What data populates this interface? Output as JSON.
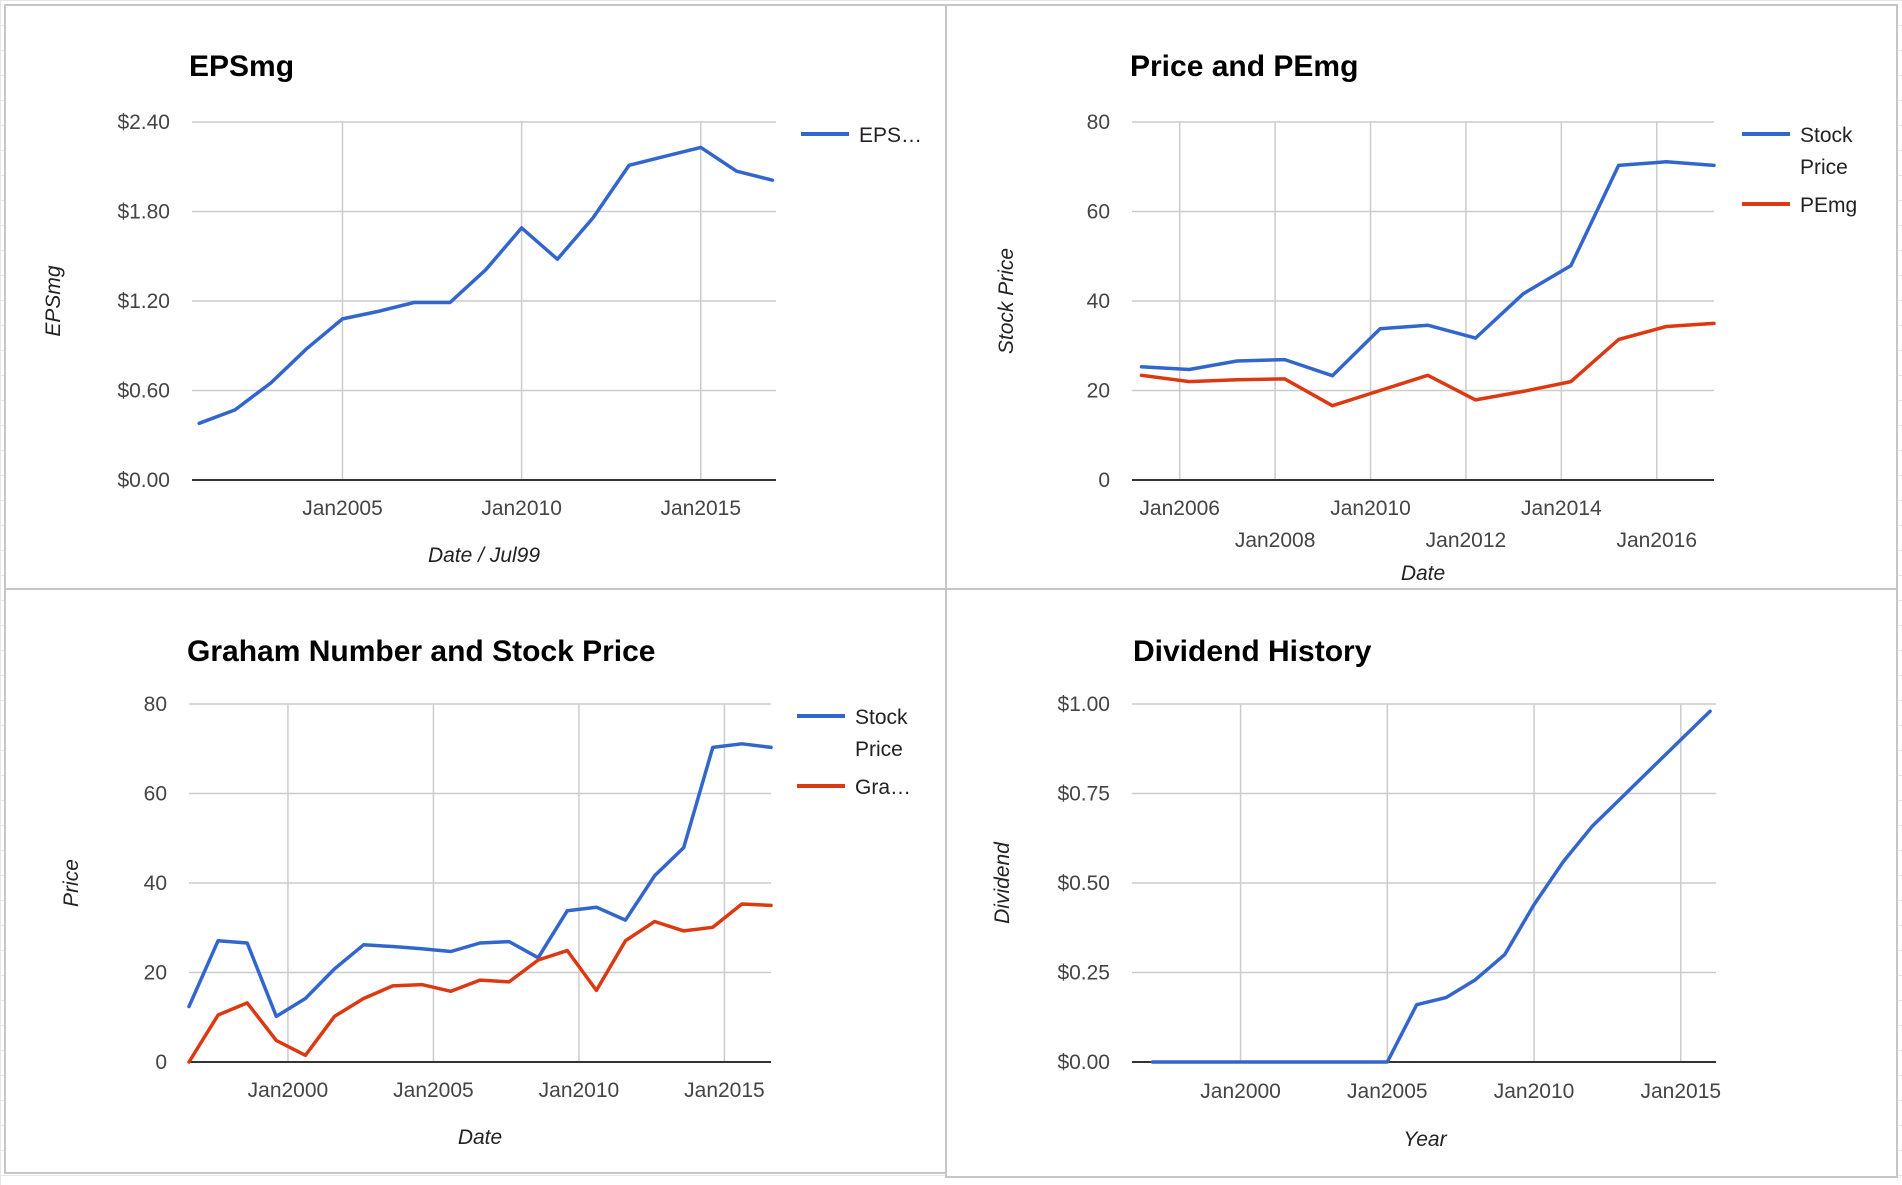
{
  "chart_data": [
    {
      "type": "line",
      "title": "EPSmg",
      "xlabel": "Date / Jul99",
      "ylabel": "EPSmg",
      "x_ticks": [
        "Jan2005",
        "Jan2010",
        "Jan2015"
      ],
      "y_ticks": [
        "$0.00",
        "$0.60",
        "$1.20",
        "$1.80",
        "$2.40"
      ],
      "ylim": [
        0,
        2.4
      ],
      "grid": true,
      "legend": "right",
      "x": [
        2001,
        2002,
        2003,
        2004,
        2005,
        2006,
        2007,
        2008,
        2009,
        2010,
        2011,
        2012,
        2013,
        2014,
        2015,
        2016,
        2017
      ],
      "series": [
        {
          "name": "EPS…",
          "color": "#3366cc",
          "values": [
            0.38,
            0.47,
            0.65,
            0.88,
            1.08,
            1.13,
            1.19,
            1.19,
            1.41,
            1.69,
            1.48,
            1.76,
            2.11,
            2.17,
            2.23,
            2.07,
            2.01
          ]
        }
      ]
    },
    {
      "type": "line",
      "title": "Price and PEmg",
      "xlabel": "Date",
      "ylabel": "Stock Price",
      "x_ticks": [
        "Jan2006",
        "Jan2008",
        "Jan2010",
        "Jan2012",
        "Jan2014",
        "Jan2016"
      ],
      "y_ticks": [
        "0",
        "20",
        "40",
        "60",
        "80"
      ],
      "ylim": [
        0,
        80
      ],
      "grid": true,
      "legend": "right",
      "x": [
        2005.2,
        2006.2,
        2007.2,
        2008.2,
        2009.2,
        2010.2,
        2011.2,
        2012.2,
        2013.2,
        2014.2,
        2015.2,
        2016.2,
        2017.2
      ],
      "series": [
        {
          "name": "Stock Price",
          "color": "#3366cc",
          "values": [
            25.3,
            24.7,
            26.6,
            26.9,
            23.3,
            33.8,
            34.6,
            31.7,
            41.6,
            47.9,
            70.3,
            71.1,
            70.3
          ]
        },
        {
          "name": "PEmg",
          "color": "#dc3912",
          "values": [
            23.4,
            22.0,
            22.4,
            22.6,
            16.6,
            20.0,
            23.4,
            17.9,
            19.8,
            22.0,
            31.4,
            34.3,
            35.0
          ]
        }
      ]
    },
    {
      "type": "line",
      "title": "Graham Number and Stock Price",
      "xlabel": "Date",
      "ylabel": "Price",
      "x_ticks": [
        "Jan2000",
        "Jan2005",
        "Jan2010",
        "Jan2015"
      ],
      "y_ticks": [
        "0",
        "20",
        "40",
        "60",
        "80"
      ],
      "ylim": [
        0,
        80
      ],
      "grid": true,
      "legend": "right",
      "x": [
        1996.6,
        1997.6,
        1998.6,
        1999.6,
        2000.6,
        2001.6,
        2002.6,
        2003.6,
        2004.6,
        2005.6,
        2006.6,
        2007.6,
        2008.6,
        2009.6,
        2010.6,
        2011.6,
        2012.6,
        2013.6,
        2014.6,
        2015.6,
        2016.6
      ],
      "series": [
        {
          "name": "Stock Price",
          "color": "#3366cc",
          "values": [
            12.4,
            27.1,
            26.6,
            10.2,
            14.2,
            20.8,
            26.2,
            25.8,
            25.3,
            24.7,
            26.6,
            26.9,
            23.3,
            33.8,
            34.6,
            31.7,
            41.6,
            47.9,
            70.3,
            71.1,
            70.3
          ]
        },
        {
          "name": "Gra…",
          "color": "#dc3912",
          "values": [
            0.0,
            10.5,
            13.2,
            4.8,
            1.5,
            10.2,
            14.2,
            17.0,
            17.3,
            15.8,
            18.3,
            17.9,
            22.8,
            24.9,
            16.0,
            27.1,
            31.4,
            29.3,
            30.1,
            35.3,
            35.0
          ]
        }
      ]
    },
    {
      "type": "line",
      "title": "Dividend History",
      "xlabel": "Year",
      "ylabel": "Dividend",
      "x_ticks": [
        "Jan2000",
        "Jan2005",
        "Jan2010",
        "Jan2015"
      ],
      "y_ticks": [
        "$0.00",
        "$0.25",
        "$0.50",
        "$0.75",
        "$1.00"
      ],
      "ylim": [
        0,
        1.0
      ],
      "grid": true,
      "legend": "none",
      "x": [
        1997,
        1998,
        1999,
        2000,
        2001,
        2002,
        2003,
        2004,
        2005,
        2006,
        2007,
        2008,
        2009,
        2010,
        2011,
        2012,
        2013,
        2014,
        2015,
        2016
      ],
      "series": [
        {
          "name": "",
          "color": "#3366cc",
          "values": [
            0,
            0,
            0,
            0,
            0,
            0,
            0,
            0,
            0,
            0.16,
            0.18,
            0.23,
            0.3,
            0.44,
            0.56,
            0.66,
            0.74,
            0.82,
            0.9,
            0.98
          ]
        }
      ]
    }
  ]
}
